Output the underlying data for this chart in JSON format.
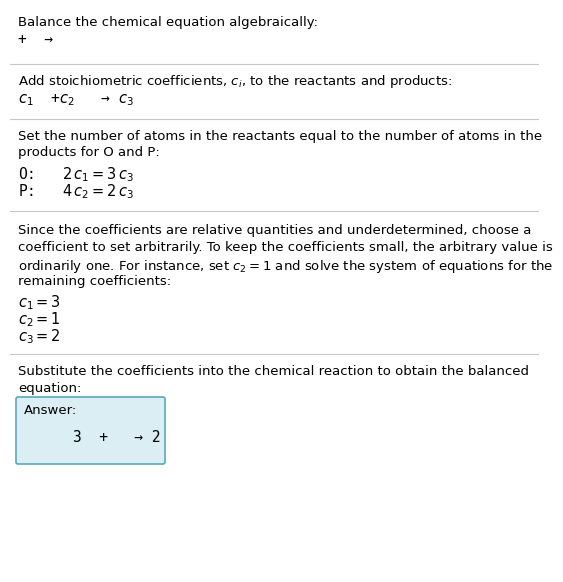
{
  "title": "Balance the chemical equation algebraically:",
  "line1": "+  →",
  "section1_header": "Add stoichiometric coefficients, $c_i$, to the reactants and products:",
  "section1_eq": "$c_1$  +$c_2$   → $c_3$",
  "section2_header_1": "Set the number of atoms in the reactants equal to the number of atoms in the",
  "section2_header_2": "products for O and P:",
  "section2_O": "O:   $2\\,c_1 = 3\\,c_3$",
  "section2_P": "P:   $4\\,c_2 = 2\\,c_3$",
  "section3_line1": "Since the coefficients are relative quantities and underdetermined, choose a",
  "section3_line2": "coefficient to set arbitrarily. To keep the coefficients small, the arbitrary value is",
  "section3_line3": "ordinarily one. For instance, set $c_2 = 1$ and solve the system of equations for the",
  "section3_line4": "remaining coefficients:",
  "section3_c1": "$c_1 = 3$",
  "section3_c2": "$c_2 = 1$",
  "section3_c3": "$c_3 = 2$",
  "section4_header_1": "Substitute the coefficients into the chemical reaction to obtain the balanced",
  "section4_header_2": "equation:",
  "answer_label": "Answer:",
  "answer_eq": "3  +   → 2",
  "bg_color": "#ffffff",
  "answer_box_color": "#daeef3",
  "answer_box_border": "#5ba8b8",
  "text_color": "#000000",
  "divider_color": "#c8c8c8",
  "font_size": 9.5,
  "mono_font_size": 10.5
}
